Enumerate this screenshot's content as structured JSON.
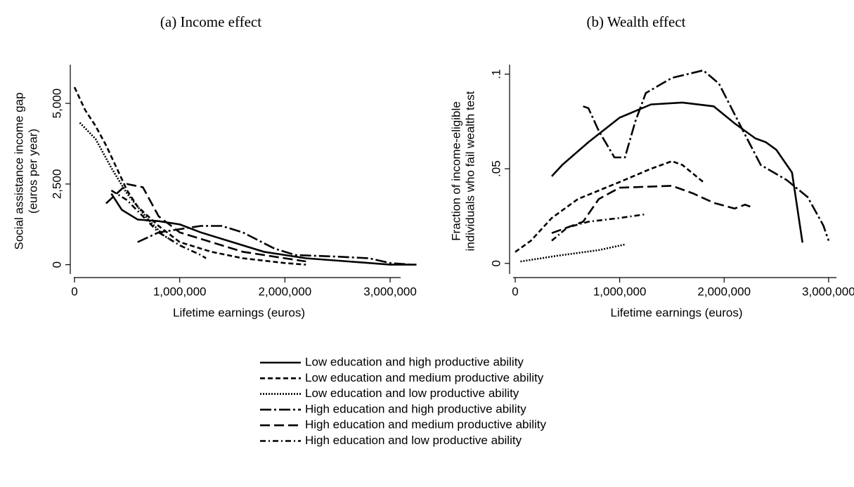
{
  "chart_data": [
    {
      "type": "line",
      "title": "(a) Income effect",
      "xlabel": "Lifetime earnings (euros)",
      "ylabel": [
        "Social assistance income gap",
        "(euros per year)"
      ],
      "xlim": [
        -40000,
        3100000
      ],
      "xticks": [
        0,
        {
          "value": 1000000,
          "label": "1,000,000"
        },
        {
          "value": 2000000,
          "label": "2,000,000"
        },
        {
          "value": 3000000,
          "label": "3,000,000"
        }
      ],
      "ylim": [
        -400,
        6200
      ],
      "yticks": [
        0,
        {
          "value": 2500,
          "label": "2,500"
        },
        {
          "value": 5000,
          "label": "5,000"
        }
      ],
      "series": [
        {
          "x": [
            350000,
            450000,
            600000,
            800000,
            1000000,
            1200000,
            1500000,
            1800000,
            2200000,
            2600000,
            3000000,
            3250000
          ],
          "values": [
            2200,
            1700,
            1400,
            1350,
            1250,
            1000,
            700,
            400,
            200,
            100,
            0,
            0
          ]
        },
        {
          "x": [
            0,
            100000,
            200000,
            300000,
            400000,
            500000,
            600000,
            800000,
            1000000,
            1300000,
            1600000,
            2000000,
            2200000
          ],
          "values": [
            5500,
            4800,
            4300,
            3700,
            3000,
            2300,
            1800,
            1200,
            700,
            400,
            200,
            50,
            0
          ]
        },
        {
          "x": [
            50000,
            200000,
            350000,
            500000,
            700000,
            850000,
            950000
          ],
          "values": [
            4400,
            3900,
            3000,
            2200,
            1400,
            900,
            700
          ]
        },
        {
          "x": [
            600000,
            800000,
            1000000,
            1200000,
            1400000,
            1600000,
            1900000,
            2100000,
            2500000,
            2800000,
            3000000,
            3200000
          ],
          "values": [
            700,
            1000,
            1100,
            1200,
            1200,
            1000,
            500,
            300,
            250,
            200,
            50,
            0
          ]
        },
        {
          "x": [
            300000,
            400000,
            500000,
            650000,
            800000,
            1000000,
            1300000,
            1600000,
            2000000,
            2200000
          ],
          "values": [
            1900,
            2200,
            2500,
            2400,
            1500,
            1000,
            700,
            400,
            200,
            100
          ]
        },
        {
          "x": [
            350000,
            500000,
            650000,
            800000,
            1000000,
            1200000,
            1250000
          ],
          "values": [
            2300,
            2000,
            1500,
            1000,
            600,
            300,
            200
          ]
        }
      ]
    },
    {
      "type": "line",
      "title": "(b) Wealth effect",
      "xlabel": "Lifetime earnings (euros)",
      "ylabel": [
        "Fraction of income-eligible",
        "individuals who fail wealth test"
      ],
      "xlim": [
        -54000,
        3075000
      ],
      "xticks": [
        0,
        {
          "value": 1000000,
          "label": "1,000,000"
        },
        {
          "value": 2000000,
          "label": "2,000,000"
        },
        {
          "value": 3000000,
          "label": "3,000,000"
        }
      ],
      "ylim": [
        -0.0075,
        0.105
      ],
      "yticks": [
        0,
        {
          "value": 0.05,
          "label": ".05"
        },
        {
          "value": 0.1,
          "label": ".1"
        }
      ],
      "series": [
        {
          "x": [
            350000,
            450000,
            700000,
            1000000,
            1300000,
            1600000,
            1900000,
            2100000,
            2300000,
            2400000,
            2500000,
            2650000,
            2750000
          ],
          "values": [
            0.046,
            0.052,
            0.064,
            0.077,
            0.084,
            0.085,
            0.083,
            0.074,
            0.066,
            0.064,
            0.06,
            0.048,
            0.011
          ]
        },
        {
          "x": [
            0,
            150000,
            350000,
            600000,
            1000000,
            1300000,
            1500000,
            1600000,
            1800000
          ],
          "values": [
            0.006,
            0.012,
            0.024,
            0.034,
            0.043,
            0.05,
            0.054,
            0.052,
            0.043
          ]
        },
        {
          "x": [
            50000,
            400000,
            800000,
            1050000
          ],
          "values": [
            0.001,
            0.004,
            0.007,
            0.01
          ]
        },
        {
          "x": [
            650000,
            700000,
            800000,
            950000,
            1050000,
            1150000,
            1250000,
            1500000,
            1800000,
            1950000,
            2200000,
            2350000,
            2600000,
            2800000,
            2950000,
            3000000
          ],
          "values": [
            0.083,
            0.082,
            0.07,
            0.056,
            0.056,
            0.075,
            0.09,
            0.098,
            0.102,
            0.095,
            0.068,
            0.052,
            0.044,
            0.035,
            0.02,
            0.012
          ]
        },
        {
          "x": [
            350000,
            500000,
            650000,
            800000,
            1000000,
            1500000,
            1700000,
            1900000,
            2100000,
            2200000,
            2250000
          ],
          "values": [
            0.016,
            0.019,
            0.022,
            0.034,
            0.04,
            0.041,
            0.037,
            0.032,
            0.029,
            0.031,
            0.03
          ]
        },
        {
          "x": [
            350000,
            500000,
            700000,
            1000000,
            1250000
          ],
          "values": [
            0.012,
            0.019,
            0.022,
            0.024,
            0.026
          ]
        }
      ]
    }
  ],
  "legend": [
    {
      "name": "Low education and high productive ability",
      "color": "#000000",
      "dash": "none"
    },
    {
      "name": "Low education and medium productive ability",
      "color": "#000000",
      "dash": "7 4"
    },
    {
      "name": "Low education and low productive ability",
      "color": "#000000",
      "dash": "2 2"
    },
    {
      "name": "High education and high productive ability",
      "color": "#000000",
      "dash": "16 4 3 4"
    },
    {
      "name": "High education and medium productive ability",
      "color": "#000000",
      "dash": "14 6"
    },
    {
      "name": "High education and low productive ability",
      "color": "#000000",
      "dash": "8 4 2 4"
    }
  ]
}
